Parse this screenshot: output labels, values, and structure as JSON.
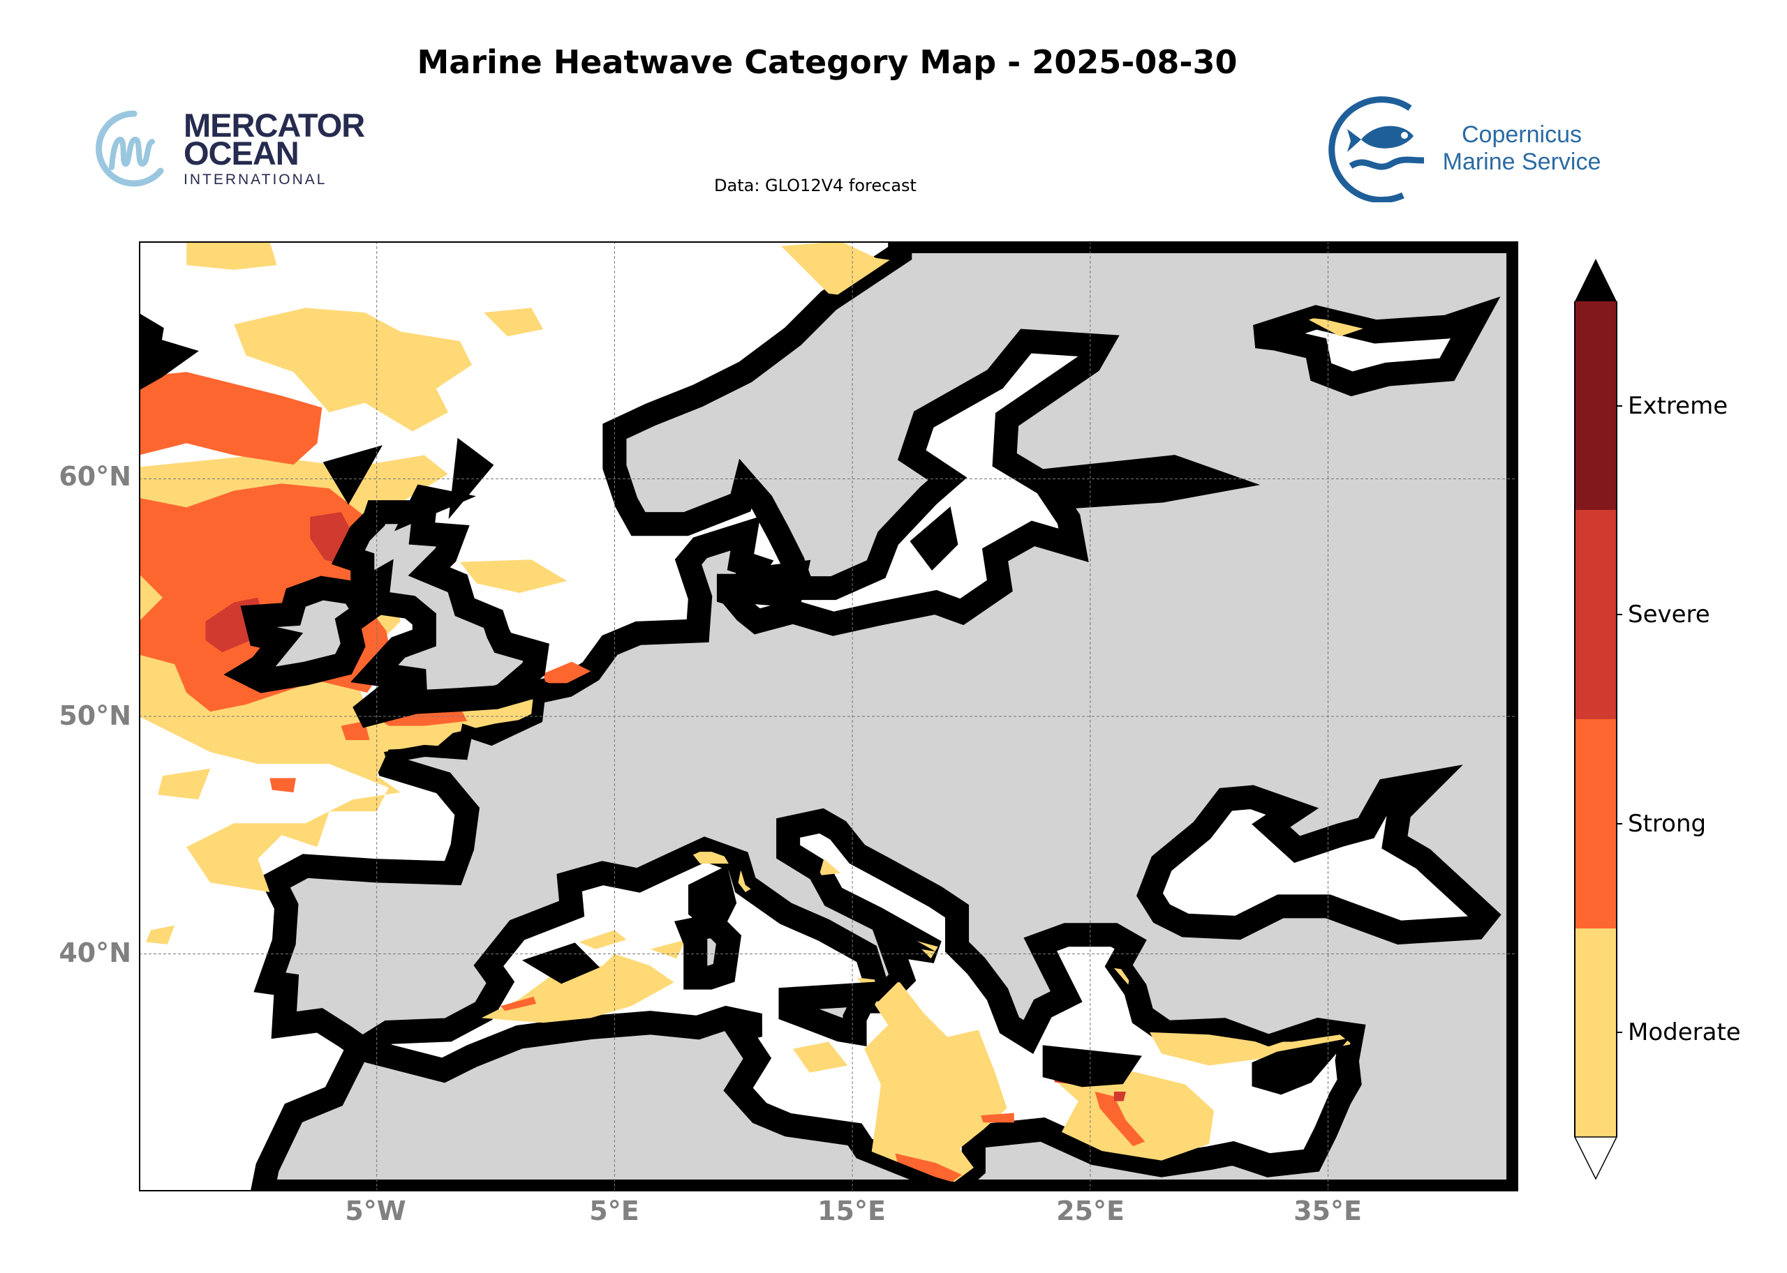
{
  "title": "Marine Heatwave Category Map - 2025-08-30",
  "subtitle": "Data: GLO12V4 forecast",
  "logos": {
    "mercator": {
      "line1": "MERCATOR",
      "line2": "OCEAN",
      "line3": "INTERNATIONAL"
    },
    "copernicus": {
      "line1": "Copernicus",
      "line2": "Marine Service"
    }
  },
  "map": {
    "extent": {
      "lon": [
        -15,
        43
      ],
      "lat": [
        30,
        70
      ]
    },
    "land_color": "#d3d3d3",
    "ocean_color": "#ffffff",
    "lat_ticks": [
      "60°N",
      "50°N",
      "40°N"
    ],
    "lon_ticks": [
      "5°W",
      "5°E",
      "15°E",
      "25°E",
      "35°E"
    ]
  },
  "colorbar": {
    "categories": [
      {
        "label": "Extreme",
        "color": "#82181c"
      },
      {
        "label": "Severe",
        "color": "#d03a2f"
      },
      {
        "label": "Strong",
        "color": "#fe6630"
      },
      {
        "label": "Moderate",
        "color": "#fed976"
      }
    ],
    "extend_max_color": "#000000",
    "extend_min_color": "#ffffff"
  }
}
